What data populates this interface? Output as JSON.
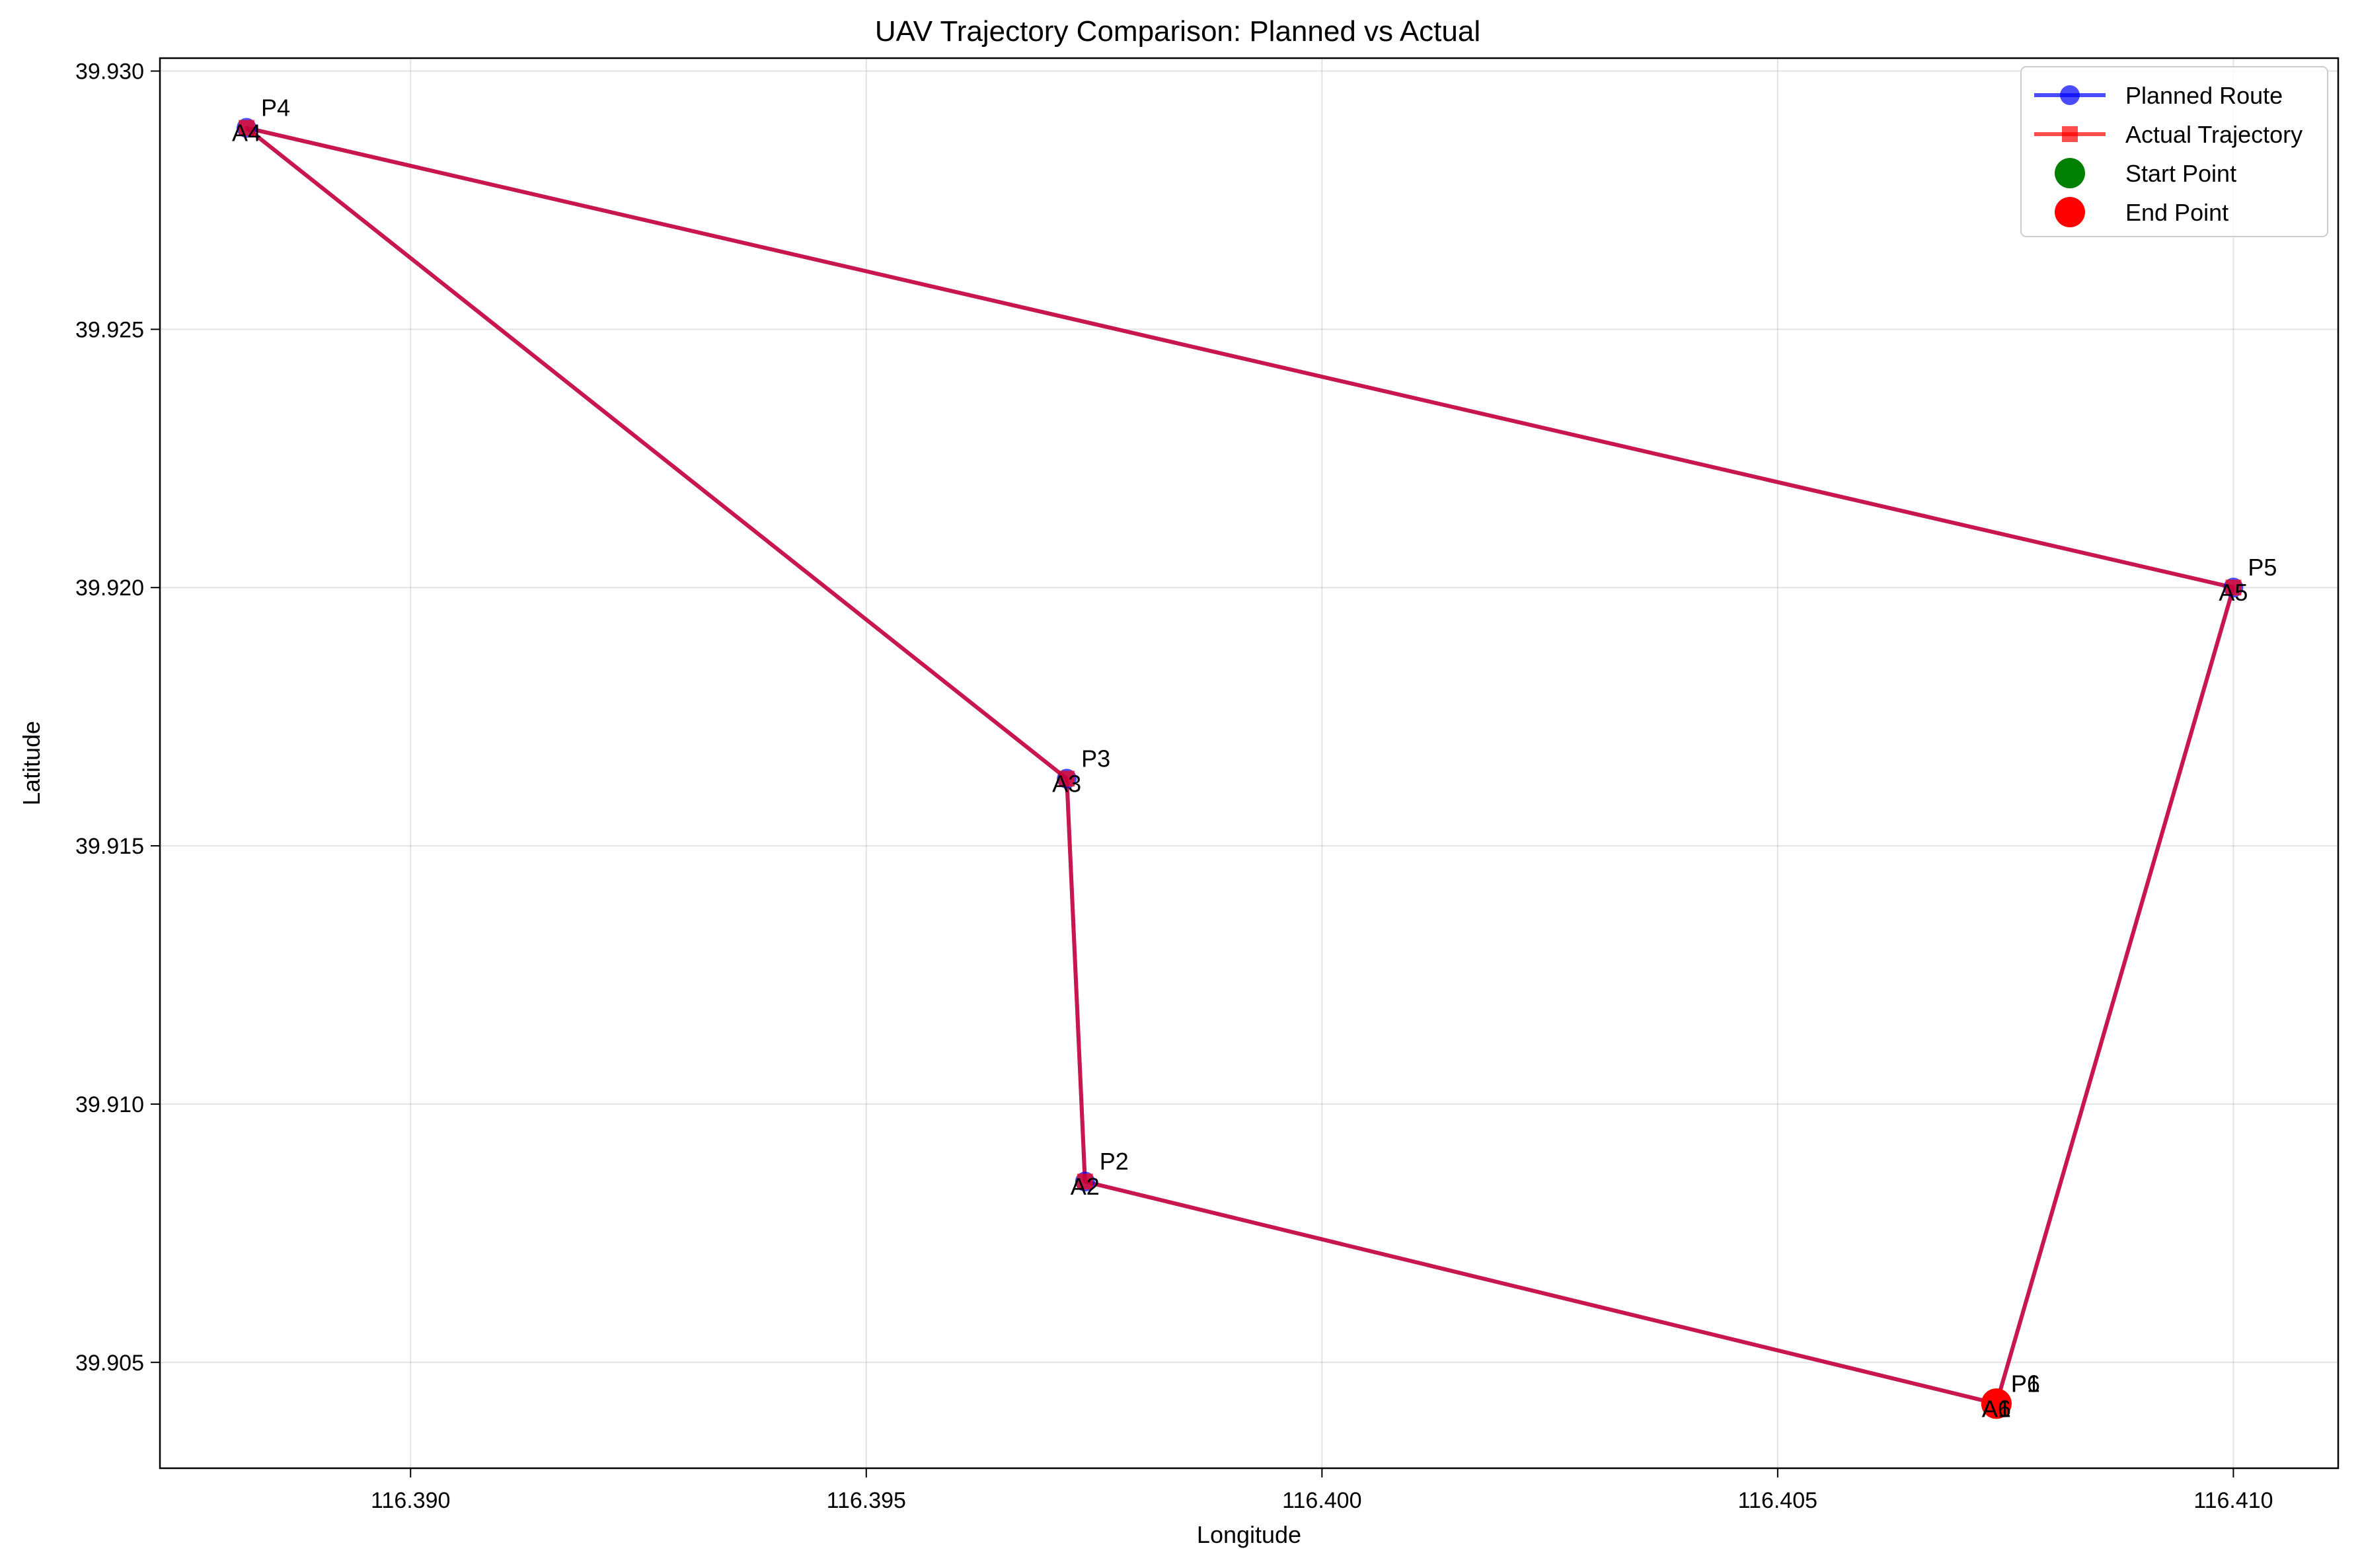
{
  "chart_data": {
    "type": "line",
    "title": "UAV Trajectory Comparison: Planned vs Actual",
    "xlabel": "Longitude",
    "ylabel": "Latitude",
    "xlim": [
      116.38725,
      116.41115
    ],
    "ylim": [
      39.90295,
      39.93025
    ],
    "xticks": [
      116.39,
      116.395,
      116.4,
      116.405,
      116.41
    ],
    "xtick_labels": [
      "116.390",
      "116.395",
      "116.400",
      "116.405",
      "116.410"
    ],
    "yticks": [
      39.905,
      39.91,
      39.915,
      39.92,
      39.925,
      39.93
    ],
    "ytick_labels": [
      "39.905",
      "39.910",
      "39.915",
      "39.920",
      "39.925",
      "39.930"
    ],
    "grid": true,
    "legend_position": "top-right",
    "series": [
      {
        "name": "Planned Route",
        "color": "#0000ff",
        "marker": "circle",
        "labels": [
          "P1",
          "P2",
          "P3",
          "P4",
          "P5",
          "P6"
        ],
        "points": [
          [
            116.4074,
            39.9042
          ],
          [
            116.3974,
            39.9085
          ],
          [
            116.3972,
            39.9163
          ],
          [
            116.3882,
            39.9289
          ],
          [
            116.41,
            39.92
          ],
          [
            116.4074,
            39.9042
          ]
        ]
      },
      {
        "name": "Actual Trajectory",
        "color": "#ff0000",
        "marker": "square",
        "labels": [
          "A1",
          "A2",
          "A3",
          "A4",
          "A5",
          "A6"
        ],
        "points": [
          [
            116.4074,
            39.9042
          ],
          [
            116.3974,
            39.9085
          ],
          [
            116.3972,
            39.9163
          ],
          [
            116.3882,
            39.9289
          ],
          [
            116.41,
            39.92
          ],
          [
            116.4074,
            39.9042
          ]
        ]
      }
    ],
    "start_point": {
      "name": "Start Point",
      "color": "#008000",
      "point": [
        116.4074,
        39.9042
      ]
    },
    "end_point": {
      "name": "End Point",
      "color": "#ff0000",
      "point": [
        116.4074,
        39.9042
      ]
    }
  }
}
